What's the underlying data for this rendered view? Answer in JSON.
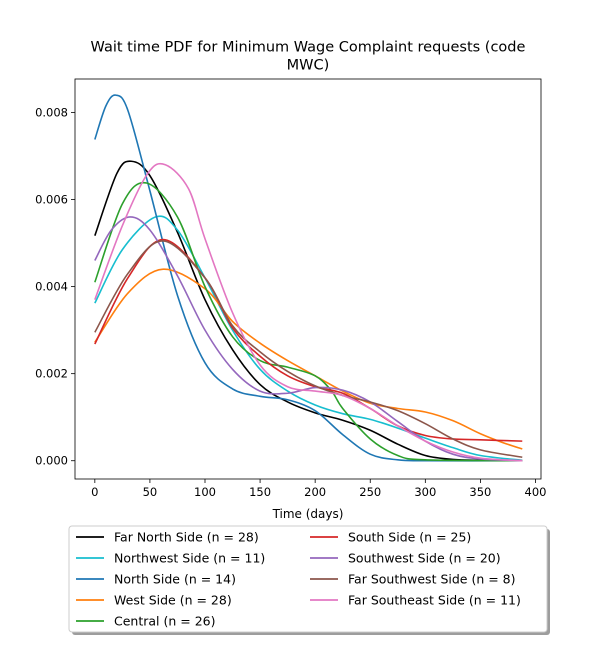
{
  "chart_data": {
    "type": "line",
    "title_line1": "Wait time PDF for Minimum Wage Complaint  requests (code",
    "title_line2": "MWC)",
    "xlabel": "Time (days)",
    "ylabel": "",
    "xlim": [
      -18,
      405
    ],
    "ylim": [
      -0.00042,
      0.00877
    ],
    "xticks": [
      0,
      50,
      100,
      150,
      200,
      250,
      300,
      350,
      400
    ],
    "yticks": [
      0.0,
      0.002,
      0.004,
      0.006,
      0.008
    ],
    "ytick_labels": [
      "0.000",
      "0.002",
      "0.004",
      "0.006",
      "0.008"
    ],
    "grid": false,
    "legend_position": "below",
    "legend_columns": 2,
    "series": [
      {
        "name": "Far North Side (n = 28)",
        "color": "#000000",
        "x": [
          0,
          20,
          33,
          50,
          75,
          100,
          125,
          150,
          175,
          200,
          225,
          250,
          275,
          300,
          325,
          350,
          388
        ],
        "y": [
          0.00517,
          0.0066,
          0.00688,
          0.00655,
          0.00525,
          0.0037,
          0.00255,
          0.00175,
          0.00135,
          0.0011,
          0.00093,
          0.0007,
          0.00038,
          0.00012,
          3e-05,
          1e-05,
          0.0
        ]
      },
      {
        "name": "Northwest Side (n = 11)",
        "color": "#17becf",
        "x": [
          0,
          25,
          55,
          75,
          100,
          125,
          150,
          175,
          200,
          225,
          250,
          275,
          300,
          325,
          350,
          388
        ],
        "y": [
          0.00362,
          0.00485,
          0.0056,
          0.0053,
          0.0042,
          0.003,
          0.0021,
          0.0016,
          0.00128,
          0.00108,
          0.00095,
          0.00075,
          0.00052,
          0.0003,
          0.00012,
          1e-05
        ]
      },
      {
        "name": "North Side (n = 14)",
        "color": "#1f77b4",
        "x": [
          0,
          10,
          19,
          30,
          50,
          75,
          100,
          125,
          150,
          175,
          200,
          225,
          250,
          275,
          300,
          388
        ],
        "y": [
          0.00738,
          0.00815,
          0.0084,
          0.00805,
          0.0062,
          0.0038,
          0.00225,
          0.00165,
          0.00148,
          0.0014,
          0.00115,
          0.0006,
          0.00015,
          2e-05,
          0.0,
          0.0
        ]
      },
      {
        "name": "West Side (n = 28)",
        "color": "#ff7f0e",
        "x": [
          0,
          30,
          62,
          100,
          125,
          150,
          175,
          200,
          225,
          250,
          275,
          300,
          325,
          350,
          370,
          388
        ],
        "y": [
          0.00272,
          0.00385,
          0.0044,
          0.00395,
          0.0032,
          0.0027,
          0.0023,
          0.00195,
          0.0016,
          0.00132,
          0.0012,
          0.00112,
          0.00092,
          0.00062,
          0.00042,
          0.00027
        ]
      },
      {
        "name": "Central (n = 26)",
        "color": "#2ca02c",
        "x": [
          0,
          25,
          47,
          75,
          100,
          125,
          150,
          175,
          200,
          215,
          225,
          250,
          275,
          300,
          388
        ],
        "y": [
          0.0041,
          0.0059,
          0.00638,
          0.0056,
          0.004,
          0.00285,
          0.0023,
          0.00215,
          0.00195,
          0.0016,
          0.0012,
          0.0005,
          0.00012,
          2e-05,
          0.0
        ]
      },
      {
        "name": "South Side (n = 25)",
        "color": "#d62728",
        "x": [
          0,
          30,
          62,
          100,
          125,
          150,
          175,
          200,
          225,
          250,
          275,
          300,
          325,
          350,
          388
        ],
        "y": [
          0.00268,
          0.0042,
          0.00508,
          0.0042,
          0.00305,
          0.0024,
          0.00195,
          0.0017,
          0.00155,
          0.0012,
          0.0008,
          0.00058,
          0.0005,
          0.00048,
          0.00045
        ]
      },
      {
        "name": "Southwest Side (n = 20)",
        "color": "#9467bd",
        "x": [
          0,
          15,
          32,
          50,
          75,
          100,
          125,
          150,
          175,
          200,
          225,
          250,
          275,
          300,
          325,
          350,
          388
        ],
        "y": [
          0.0046,
          0.0053,
          0.0056,
          0.0053,
          0.00425,
          0.003,
          0.0021,
          0.0016,
          0.00155,
          0.00168,
          0.00162,
          0.00135,
          0.0009,
          0.00045,
          0.00015,
          4e-05,
          0.0
        ]
      },
      {
        "name": "Far Southwest Side (n = 8)",
        "color": "#8c564b",
        "x": [
          0,
          30,
          62,
          100,
          125,
          150,
          175,
          200,
          225,
          250,
          275,
          300,
          325,
          350,
          388
        ],
        "y": [
          0.00295,
          0.0043,
          0.00505,
          0.0042,
          0.0031,
          0.0025,
          0.00205,
          0.00172,
          0.0015,
          0.00135,
          0.00115,
          0.00085,
          0.0005,
          0.00025,
          8e-05
        ]
      },
      {
        "name": "Far Southeast Side (n = 11)",
        "color": "#e377c2",
        "x": [
          0,
          25,
          48,
          64,
          85,
          100,
          125,
          150,
          175,
          200,
          225,
          250,
          275,
          300,
          325,
          350,
          388
        ],
        "y": [
          0.0037,
          0.0054,
          0.0066,
          0.0068,
          0.00625,
          0.0051,
          0.0034,
          0.0022,
          0.0017,
          0.0016,
          0.0015,
          0.0012,
          0.0008,
          0.00045,
          0.0002,
          6e-05,
          0.0
        ]
      }
    ]
  }
}
